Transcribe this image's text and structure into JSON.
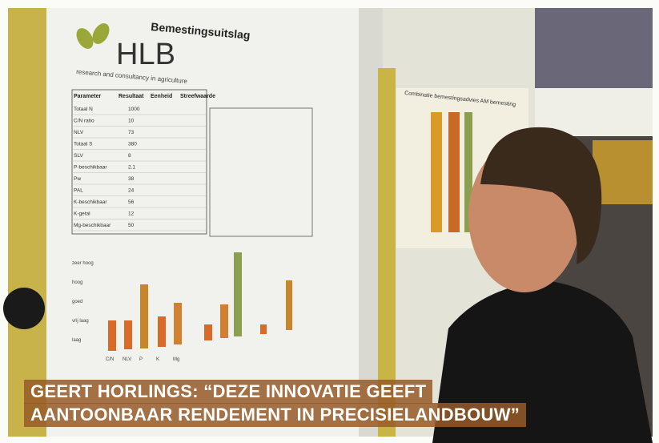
{
  "poster": {
    "title": "Bemestingsuitslag",
    "logo": "HLB",
    "tagline": "research and consultancy in agriculture",
    "table_header": [
      "Parameter",
      "Resultaat",
      "Eenheid",
      "Streefwaarde"
    ],
    "table_rows": [
      [
        "Totaal N",
        "1000"
      ],
      [
        "C/N ratio",
        "10"
      ],
      [
        "NLV",
        "73"
      ],
      [
        "Totaal S",
        "380"
      ],
      [
        "SLV",
        "8"
      ],
      [
        "P-beschikbaar",
        "2.1"
      ],
      [
        "Pw",
        "38"
      ],
      [
        "PAL",
        "24"
      ],
      [
        "K-beschikbaar",
        "56"
      ],
      [
        "K-getal",
        "12"
      ],
      [
        "Mg-beschikbaar",
        "50"
      ]
    ],
    "chart_categories": [
      "C/N",
      "NLV",
      "P",
      "K",
      "Mg"
    ],
    "chart_levels": [
      "zeer hoog",
      "hoog",
      "goed",
      "vrij laag",
      "laag"
    ]
  },
  "side_poster": {
    "title": "Combinatie bemestingsadvies AM bemesting"
  },
  "caption": {
    "lines": [
      "GEERT HORLINGS: “DEZE INNOVATIE GEEFT",
      "AANTOONBAAR RENDEMENT IN PRECISIELANDBOUW”"
    ]
  }
}
